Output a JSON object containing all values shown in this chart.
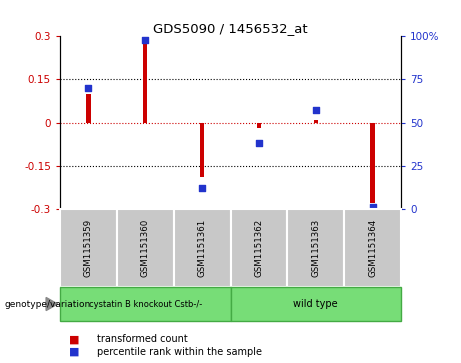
{
  "title": "GDS5090 / 1456532_at",
  "samples": [
    "GSM1151359",
    "GSM1151360",
    "GSM1151361",
    "GSM1151362",
    "GSM1151363",
    "GSM1151364"
  ],
  "transformed_count": [
    0.1,
    0.28,
    -0.19,
    -0.02,
    0.01,
    -0.28
  ],
  "percentile_rank": [
    70,
    98,
    12,
    38,
    57,
    1
  ],
  "ylim_left": [
    -0.3,
    0.3
  ],
  "ylim_right": [
    0,
    100
  ],
  "yticks_left": [
    -0.3,
    -0.15,
    0,
    0.15,
    0.3
  ],
  "yticks_right": [
    0,
    25,
    50,
    75,
    100
  ],
  "ytick_labels_left": [
    "-0.3",
    "-0.15",
    "0",
    "0.15",
    "0.3"
  ],
  "ytick_labels_right": [
    "0",
    "25",
    "50",
    "75",
    "100%"
  ],
  "bar_color": "#cc0000",
  "scatter_color": "#2233cc",
  "hline_color": "#cc0000",
  "grid_color": "#000000",
  "group1_label": "cystatin B knockout Cstb-/-",
  "group2_label": "wild type",
  "group1_indices": [
    0,
    1,
    2
  ],
  "group2_indices": [
    3,
    4,
    5
  ],
  "group1_color": "#77dd77",
  "group2_color": "#77dd77",
  "group_edge_color": "#44aa44",
  "genotype_label": "genotype/variation",
  "legend_bar_label": "transformed count",
  "legend_scatter_label": "percentile rank within the sample",
  "bar_width": 0.08,
  "background_color": "#ffffff",
  "plot_bg_color": "#ffffff",
  "sample_bg_color": "#c8c8c8"
}
